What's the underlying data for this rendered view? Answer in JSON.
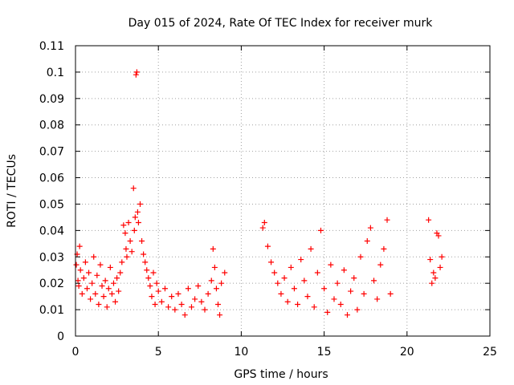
{
  "chart_data": {
    "type": "scatter",
    "title": "Day 015 of 2024, Rate Of TEC Index for receiver murk",
    "xlabel": "GPS time / hours",
    "ylabel": "ROTI / TECUs",
    "xlim": [
      0,
      25
    ],
    "ylim": [
      0,
      0.11
    ],
    "x_ticks": [
      0,
      5,
      10,
      15,
      20,
      25
    ],
    "x_tick_labels": [
      "0",
      "5",
      "10",
      "15",
      "20",
      "25"
    ],
    "y_ticks": [
      0,
      0.01,
      0.02,
      0.03,
      0.04,
      0.05,
      0.06,
      0.07,
      0.08,
      0.09,
      0.1,
      0.11
    ],
    "y_tick_labels": [
      "0",
      "0.01",
      "0.02",
      "0.03",
      "0.04",
      "0.05",
      "0.06",
      "0.07",
      "0.08",
      "0.09",
      "0.1",
      "0.11"
    ],
    "grid": true,
    "marker": "+",
    "color": "#ff0000",
    "series": [
      {
        "name": "ROTI",
        "points": [
          [
            0.05,
            0.027
          ],
          [
            0.1,
            0.031
          ],
          [
            0.15,
            0.021
          ],
          [
            0.2,
            0.019
          ],
          [
            0.25,
            0.034
          ],
          [
            0.3,
            0.025
          ],
          [
            0.4,
            0.016
          ],
          [
            0.5,
            0.022
          ],
          [
            0.6,
            0.028
          ],
          [
            0.7,
            0.018
          ],
          [
            0.8,
            0.024
          ],
          [
            0.9,
            0.014
          ],
          [
            1.0,
            0.02
          ],
          [
            1.1,
            0.03
          ],
          [
            1.2,
            0.016
          ],
          [
            1.3,
            0.023
          ],
          [
            1.4,
            0.012
          ],
          [
            1.5,
            0.027
          ],
          [
            1.6,
            0.019
          ],
          [
            1.7,
            0.015
          ],
          [
            1.8,
            0.021
          ],
          [
            1.9,
            0.011
          ],
          [
            2.0,
            0.018
          ],
          [
            2.1,
            0.026
          ],
          [
            2.2,
            0.016
          ],
          [
            2.3,
            0.02
          ],
          [
            2.4,
            0.013
          ],
          [
            2.5,
            0.022
          ],
          [
            2.6,
            0.017
          ],
          [
            2.7,
            0.024
          ],
          [
            2.8,
            0.028
          ],
          [
            2.9,
            0.042
          ],
          [
            3.0,
            0.039
          ],
          [
            3.05,
            0.033
          ],
          [
            3.1,
            0.03
          ],
          [
            3.2,
            0.043
          ],
          [
            3.3,
            0.036
          ],
          [
            3.4,
            0.032
          ],
          [
            3.5,
            0.056
          ],
          [
            3.55,
            0.04
          ],
          [
            3.6,
            0.045
          ],
          [
            3.65,
            0.099
          ],
          [
            3.7,
            0.1
          ],
          [
            3.75,
            0.047
          ],
          [
            3.8,
            0.043
          ],
          [
            3.9,
            0.05
          ],
          [
            4.0,
            0.036
          ],
          [
            4.1,
            0.031
          ],
          [
            4.2,
            0.028
          ],
          [
            4.3,
            0.025
          ],
          [
            4.4,
            0.022
          ],
          [
            4.5,
            0.019
          ],
          [
            4.6,
            0.015
          ],
          [
            4.7,
            0.024
          ],
          [
            4.8,
            0.012
          ],
          [
            4.9,
            0.02
          ],
          [
            5.0,
            0.017
          ],
          [
            5.2,
            0.013
          ],
          [
            5.4,
            0.018
          ],
          [
            5.6,
            0.011
          ],
          [
            5.8,
            0.015
          ],
          [
            6.0,
            0.01
          ],
          [
            6.2,
            0.016
          ],
          [
            6.4,
            0.012
          ],
          [
            6.6,
            0.008
          ],
          [
            6.8,
            0.018
          ],
          [
            7.0,
            0.011
          ],
          [
            7.2,
            0.014
          ],
          [
            7.4,
            0.019
          ],
          [
            7.6,
            0.013
          ],
          [
            7.8,
            0.01
          ],
          [
            8.0,
            0.016
          ],
          [
            8.2,
            0.021
          ],
          [
            8.3,
            0.033
          ],
          [
            8.4,
            0.026
          ],
          [
            8.5,
            0.018
          ],
          [
            8.6,
            0.012
          ],
          [
            8.7,
            0.008
          ],
          [
            8.8,
            0.02
          ],
          [
            9.0,
            0.024
          ],
          [
            11.3,
            0.041
          ],
          [
            11.4,
            0.043
          ],
          [
            11.6,
            0.034
          ],
          [
            11.8,
            0.028
          ],
          [
            12.0,
            0.024
          ],
          [
            12.2,
            0.02
          ],
          [
            12.4,
            0.016
          ],
          [
            12.6,
            0.022
          ],
          [
            12.8,
            0.013
          ],
          [
            13.0,
            0.026
          ],
          [
            13.2,
            0.018
          ],
          [
            13.4,
            0.012
          ],
          [
            13.6,
            0.029
          ],
          [
            13.8,
            0.021
          ],
          [
            14.0,
            0.015
          ],
          [
            14.2,
            0.033
          ],
          [
            14.4,
            0.011
          ],
          [
            14.6,
            0.024
          ],
          [
            14.8,
            0.04
          ],
          [
            15.0,
            0.018
          ],
          [
            15.2,
            0.009
          ],
          [
            15.4,
            0.027
          ],
          [
            15.6,
            0.014
          ],
          [
            15.8,
            0.02
          ],
          [
            16.0,
            0.012
          ],
          [
            16.2,
            0.025
          ],
          [
            16.4,
            0.008
          ],
          [
            16.6,
            0.017
          ],
          [
            16.8,
            0.022
          ],
          [
            17.0,
            0.01
          ],
          [
            17.2,
            0.03
          ],
          [
            17.4,
            0.016
          ],
          [
            17.6,
            0.036
          ],
          [
            17.8,
            0.041
          ],
          [
            18.0,
            0.021
          ],
          [
            18.2,
            0.014
          ],
          [
            18.4,
            0.027
          ],
          [
            18.6,
            0.033
          ],
          [
            18.8,
            0.044
          ],
          [
            19.0,
            0.016
          ],
          [
            21.3,
            0.044
          ],
          [
            21.4,
            0.029
          ],
          [
            21.5,
            0.02
          ],
          [
            21.6,
            0.024
          ],
          [
            21.7,
            0.022
          ],
          [
            21.8,
            0.039
          ],
          [
            21.9,
            0.038
          ],
          [
            22.0,
            0.026
          ],
          [
            22.1,
            0.03
          ]
        ]
      }
    ]
  }
}
